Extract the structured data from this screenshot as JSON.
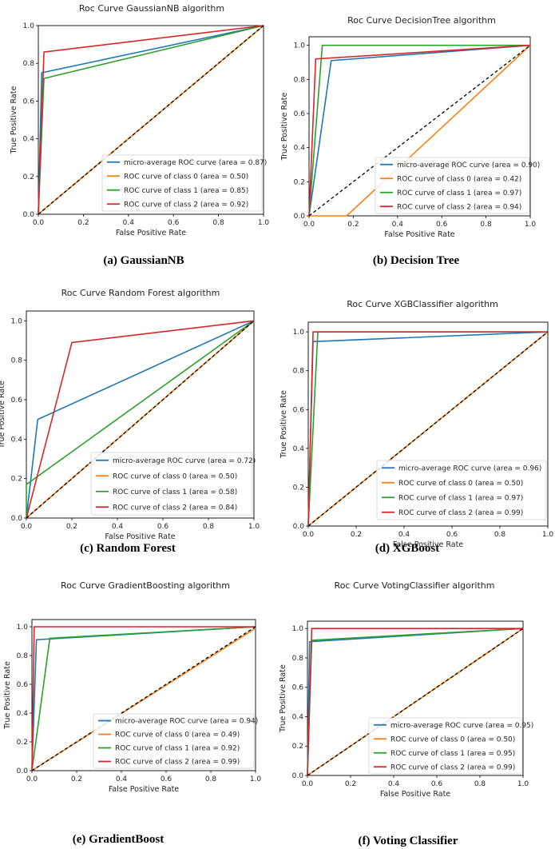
{
  "colors": {
    "micro": "#1f77b4",
    "class0": "#ff7f0e",
    "class1": "#2ca02c",
    "class2": "#d62728",
    "diagonal": "#000000"
  },
  "chart_data": [
    {
      "type": "line",
      "title": "Roc Curve GaussianNB algorithm",
      "caption": "(a) GaussianNB",
      "xlabel": "False Positive Rate",
      "ylabel": "True Positive Rate",
      "xlim": [
        0,
        1
      ],
      "ylim": [
        0,
        1
      ],
      "xticks": [
        "0.0",
        "0.2",
        "0.4",
        "0.6",
        "0.8",
        "1.0"
      ],
      "yticks": [
        "0.0",
        "0.2",
        "0.4",
        "0.6",
        "0.8",
        "1.0"
      ],
      "series": [
        {
          "name": "micro-average ROC curve (area = 0.87)",
          "color_key": "micro",
          "x": [
            0,
            0.015,
            1
          ],
          "y": [
            0,
            0.75,
            1
          ]
        },
        {
          "name": "ROC curve of class 0 (area = 0.50)",
          "color_key": "class0",
          "x": [
            0,
            1
          ],
          "y": [
            0,
            1
          ]
        },
        {
          "name": "ROC curve of class 1 (area = 0.85)",
          "color_key": "class1",
          "x": [
            0,
            0.025,
            1
          ],
          "y": [
            0,
            0.72,
            1
          ]
        },
        {
          "name": "ROC curve of class 2 (area = 0.92)",
          "color_key": "class2",
          "x": [
            0,
            0.025,
            1
          ],
          "y": [
            0,
            0.86,
            1
          ]
        }
      ]
    },
    {
      "type": "line",
      "title": "Roc Curve DecisionTree algorithm",
      "caption": "(b) Decision Tree",
      "xlabel": "False Positive Rate",
      "ylabel": "True Positive Rate",
      "xlim": [
        0,
        1
      ],
      "ylim": [
        0,
        1.05
      ],
      "xticks": [
        "0.0",
        "0.2",
        "0.4",
        "0.6",
        "0.8",
        "1.0"
      ],
      "yticks": [
        "0.0",
        "0.2",
        "0.4",
        "0.6",
        "0.8",
        "1.0"
      ],
      "series": [
        {
          "name": "micro-average ROC curve (area = 0.90)",
          "color_key": "micro",
          "x": [
            0,
            0.1,
            1
          ],
          "y": [
            0,
            0.91,
            1
          ]
        },
        {
          "name": "ROC curve of class 0 (area = 0.42)",
          "color_key": "class0",
          "x": [
            0,
            0.17,
            1
          ],
          "y": [
            0,
            0,
            1
          ]
        },
        {
          "name": "ROC curve of class 1 (area = 0.97)",
          "color_key": "class1",
          "x": [
            0,
            0.06,
            1
          ],
          "y": [
            0,
            1.0,
            1
          ]
        },
        {
          "name": "ROC curve of class 2 (area = 0.94)",
          "color_key": "class2",
          "x": [
            0,
            0.03,
            1
          ],
          "y": [
            0,
            0.92,
            1
          ]
        }
      ]
    },
    {
      "type": "line",
      "title": "Roc Curve Random Forest algorithm",
      "caption": "(c) Random Forest",
      "xlabel": "False Positive Rate",
      "ylabel": "True Positive Rate",
      "xlim": [
        0,
        1
      ],
      "ylim": [
        0,
        1.05
      ],
      "xticks": [
        "0.0",
        "0.2",
        "0.4",
        "0.6",
        "0.8",
        "1.0"
      ],
      "yticks": [
        "0.0",
        "0.2",
        "0.4",
        "0.6",
        "0.8",
        "1.0"
      ],
      "series": [
        {
          "name": "micro-average ROC curve (area = 0.72)",
          "color_key": "micro",
          "x": [
            0,
            0.05,
            1
          ],
          "y": [
            0,
            0.5,
            1
          ]
        },
        {
          "name": "ROC curve of class 0 (area = 0.50)",
          "color_key": "class0",
          "x": [
            0,
            1
          ],
          "y": [
            0,
            1
          ]
        },
        {
          "name": "ROC curve of class 1 (area = 0.58)",
          "color_key": "class1",
          "x": [
            0,
            0.0,
            1
          ],
          "y": [
            0,
            0.17,
            1
          ]
        },
        {
          "name": "ROC curve of class 2 (area = 0.84)",
          "color_key": "class2",
          "x": [
            0,
            0.2,
            1
          ],
          "y": [
            0,
            0.89,
            1
          ]
        }
      ]
    },
    {
      "type": "line",
      "title": "Roc Curve XGBClassifier algorithm",
      "caption": "(d) XGBoost",
      "xlabel": "False Positive Rate",
      "ylabel": "True Positive Rate",
      "xlim": [
        0,
        1
      ],
      "ylim": [
        0,
        1.05
      ],
      "xticks": [
        "0.0",
        "0.2",
        "0.4",
        "0.6",
        "0.8",
        "1.0"
      ],
      "yticks": [
        "0.0",
        "0.2",
        "0.4",
        "0.6",
        "0.8",
        "1.0"
      ],
      "series": [
        {
          "name": "micro-average ROC curve (area = 0.96)",
          "color_key": "micro",
          "x": [
            0,
            0.02,
            1
          ],
          "y": [
            0,
            0.95,
            1
          ]
        },
        {
          "name": "ROC curve of class 0 (area = 0.50)",
          "color_key": "class0",
          "x": [
            0,
            1
          ],
          "y": [
            0,
            1
          ]
        },
        {
          "name": "ROC curve of class 1 (area = 0.97)",
          "color_key": "class1",
          "x": [
            0,
            0.04,
            1
          ],
          "y": [
            0,
            1.0,
            1
          ]
        },
        {
          "name": "ROC curve of class 2 (area = 0.99)",
          "color_key": "class2",
          "x": [
            0,
            0.02,
            1
          ],
          "y": [
            0,
            1.0,
            1
          ]
        }
      ]
    },
    {
      "type": "line",
      "title": "Roc Curve GradientBoosting algorithm",
      "caption": "(e) GradientBoost",
      "xlabel": "False Positive Rate",
      "ylabel": "True Positive Rate",
      "xlim": [
        0,
        1
      ],
      "ylim": [
        0,
        1.05
      ],
      "xticks": [
        "0.0",
        "0.2",
        "0.4",
        "0.6",
        "0.8",
        "1.0"
      ],
      "yticks": [
        "0.0",
        "0.2",
        "0.4",
        "0.6",
        "0.8",
        "1.0"
      ],
      "series": [
        {
          "name": "micro-average ROC curve (area = 0.94)",
          "color_key": "micro",
          "x": [
            0,
            0.02,
            1
          ],
          "y": [
            0,
            0.91,
            1
          ]
        },
        {
          "name": "ROC curve of class 0 (area = 0.49)",
          "color_key": "class0",
          "x": [
            0,
            1
          ],
          "y": [
            0,
            0.99
          ]
        },
        {
          "name": "ROC curve of class 1 (area = 0.92)",
          "color_key": "class1",
          "x": [
            0,
            0.08,
            1
          ],
          "y": [
            0,
            0.92,
            1
          ]
        },
        {
          "name": "ROC curve of class 2 (area = 0.99)",
          "color_key": "class2",
          "x": [
            0,
            0.01,
            1
          ],
          "y": [
            0,
            1.0,
            1
          ]
        }
      ]
    },
    {
      "type": "line",
      "title": "Roc Curve VotingClassifier algorithm",
      "caption": "(f) Voting Classifier",
      "xlabel": "False Positive Rate",
      "ylabel": "True Positive Rate",
      "xlim": [
        0,
        1
      ],
      "ylim": [
        0,
        1.05
      ],
      "xticks": [
        "0.0",
        "0.2",
        "0.4",
        "0.6",
        "0.8",
        "1.0"
      ],
      "yticks": [
        "0.0",
        "0.2",
        "0.4",
        "0.6",
        "0.8",
        "1.0"
      ],
      "series": [
        {
          "name": "micro-average ROC curve (area = 0.95)",
          "color_key": "micro",
          "x": [
            0,
            0.01,
            1
          ],
          "y": [
            0,
            0.91,
            1
          ]
        },
        {
          "name": "ROC curve of class 0 (area = 0.50)",
          "color_key": "class0",
          "x": [
            0,
            1
          ],
          "y": [
            0,
            1
          ]
        },
        {
          "name": "ROC curve of class 1 (area = 0.95)",
          "color_key": "class1",
          "x": [
            0,
            0.02,
            1
          ],
          "y": [
            0,
            0.92,
            1
          ]
        },
        {
          "name": "ROC curve of class 2 (area = 0.99)",
          "color_key": "class2",
          "x": [
            0,
            0.02,
            1
          ],
          "y": [
            0,
            1.0,
            1
          ]
        }
      ]
    }
  ]
}
